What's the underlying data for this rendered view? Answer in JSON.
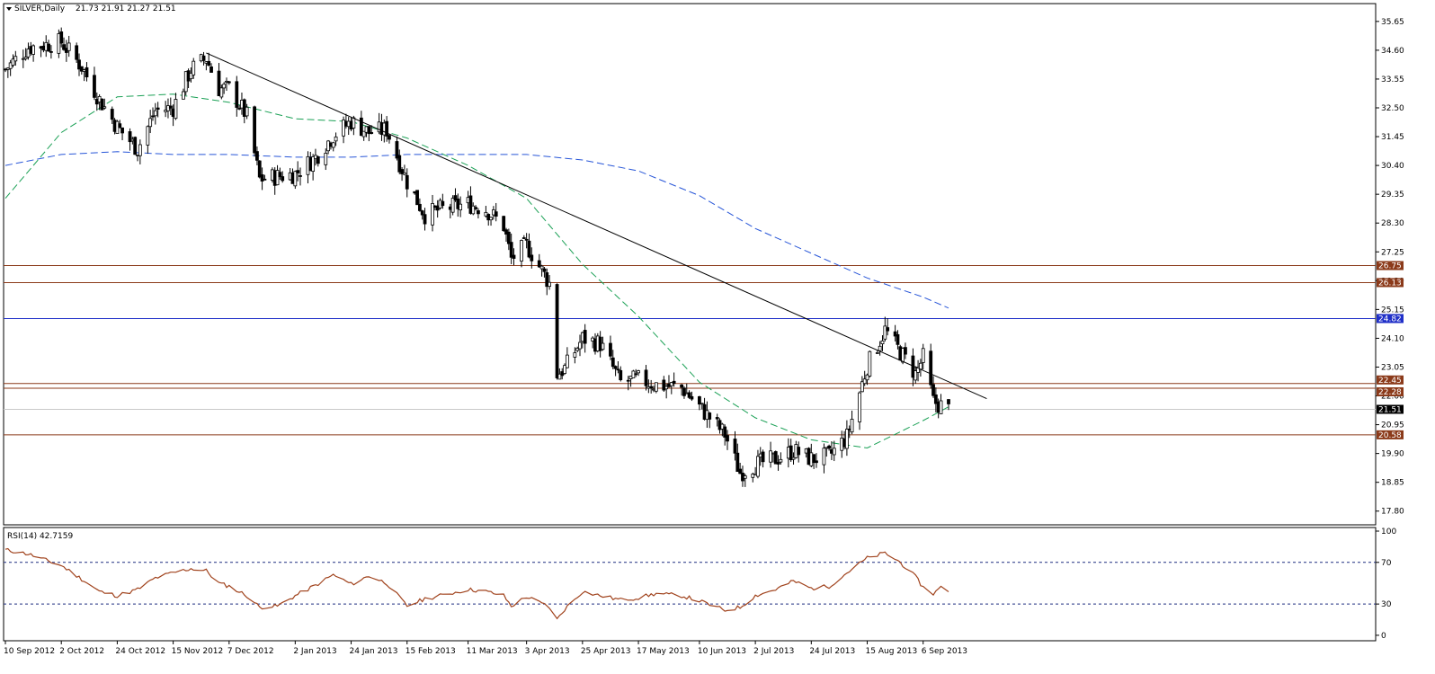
{
  "header": {
    "symbol_label": "SILVER,Daily",
    "ohlc_label": "21.73 21.91 21.27 21.51"
  },
  "chart_data": [
    {
      "type": "candlestick",
      "title": "SILVER,Daily",
      "ohlc_last": {
        "open": 21.73,
        "high": 21.91,
        "low": 21.27,
        "close": 21.51
      },
      "y_range": [
        17.3,
        36.3
      ],
      "y_ticks": [
        "35.65",
        "34.60",
        "33.55",
        "32.50",
        "31.45",
        "30.40",
        "29.35",
        "28.30",
        "27.25",
        "26.20",
        "25.15",
        "24.10",
        "23.05",
        "22.00",
        "20.95",
        "19.90",
        "18.85",
        "17.80"
      ],
      "x_ticks": [
        "10 Sep 2012",
        "2 Oct 2012",
        "24 Oct 2012",
        "15 Nov 2012",
        "7 Dec 2012",
        "2 Jan 2013",
        "24 Jan 2013",
        "15 Feb 2013",
        "11 Mar 2013",
        "3 Apr 2013",
        "25 Apr 2013",
        "17 May 2013",
        "10 Jun 2013",
        "2 Jul 2013",
        "24 Jul 2013",
        "15 Aug 2013",
        "6 Sep 2013"
      ],
      "key_points": [
        {
          "date": "10 Sep 2012",
          "close": 33.9
        },
        {
          "date": "19 Sep 2012",
          "close": 34.7
        },
        {
          "date": "2 Oct 2012",
          "close": 34.9
        },
        {
          "date": "10 Oct 2012",
          "close": 34.0
        },
        {
          "date": "17 Oct 2012",
          "close": 32.8
        },
        {
          "date": "24 Oct 2012",
          "close": 31.8
        },
        {
          "date": "1 Nov 2012",
          "close": 31.0
        },
        {
          "date": "8 Nov 2012",
          "close": 32.4
        },
        {
          "date": "15 Nov 2012",
          "close": 32.5
        },
        {
          "date": "22 Nov 2012",
          "close": 33.9
        },
        {
          "date": "28 Nov 2012",
          "close": 34.3
        },
        {
          "date": "3 Dec 2012",
          "close": 33.2
        },
        {
          "date": "7 Dec 2012",
          "close": 33.2
        },
        {
          "date": "14 Dec 2012",
          "close": 32.2
        },
        {
          "date": "19 Dec 2012",
          "close": 29.9
        },
        {
          "date": "26 Dec 2012",
          "close": 30.0
        },
        {
          "date": "2 Jan 2013",
          "close": 30.1
        },
        {
          "date": "10 Jan 2013",
          "close": 30.7
        },
        {
          "date": "17 Jan 2013",
          "close": 31.5
        },
        {
          "date": "24 Jan 2013",
          "close": 32.0
        },
        {
          "date": "31 Jan 2013",
          "close": 31.6
        },
        {
          "date": "7 Feb 2013",
          "close": 31.7
        },
        {
          "date": "15 Feb 2013",
          "close": 29.8
        },
        {
          "date": "22 Feb 2013",
          "close": 28.6
        },
        {
          "date": "28 Feb 2013",
          "close": 28.8
        },
        {
          "date": "11 Mar 2013",
          "close": 29.0
        },
        {
          "date": "18 Mar 2013",
          "close": 28.8
        },
        {
          "date": "25 Mar 2013",
          "close": 28.2
        },
        {
          "date": "28 Mar 2013",
          "close": 27.0
        },
        {
          "date": "3 Apr 2013",
          "close": 27.5
        },
        {
          "date": "12 Apr 2013",
          "close": 26.1
        },
        {
          "date": "15 Apr 2013",
          "close": 22.8
        },
        {
          "date": "18 Apr 2013",
          "close": 23.0
        },
        {
          "date": "25 Apr 2013",
          "close": 24.1
        },
        {
          "date": "2 May 2013",
          "close": 23.9
        },
        {
          "date": "10 May 2013",
          "close": 22.5
        },
        {
          "date": "17 May 2013",
          "close": 22.6
        },
        {
          "date": "24 May 2013",
          "close": 22.4
        },
        {
          "date": "3 Jun 2013",
          "close": 22.3
        },
        {
          "date": "10 Jun 2013",
          "close": 21.6
        },
        {
          "date": "20 Jun 2013",
          "close": 20.6
        },
        {
          "date": "26 Jun 2013",
          "close": 19.2
        },
        {
          "date": "2 Jul 2013",
          "close": 19.5
        },
        {
          "date": "10 Jul 2013",
          "close": 19.7
        },
        {
          "date": "17 Jul 2013",
          "close": 20.0
        },
        {
          "date": "24 Jul 2013",
          "close": 19.7
        },
        {
          "date": "31 Jul 2013",
          "close": 19.8
        },
        {
          "date": "7 Aug 2013",
          "close": 20.5
        },
        {
          "date": "15 Aug 2013",
          "close": 23.1
        },
        {
          "date": "22 Aug 2013",
          "close": 24.4
        },
        {
          "date": "28 Aug 2013",
          "close": 23.6
        },
        {
          "date": "3 Sep 2013",
          "close": 22.8
        },
        {
          "date": "6 Sep 2013",
          "close": 23.4
        },
        {
          "date": "10 Sep 2013",
          "close": 21.8
        },
        {
          "date": "16 Sep 2013",
          "close": 21.5
        }
      ],
      "overlays": {
        "ma_short": [
          {
            "date": "10 Sep 2012",
            "value": 29.2
          },
          {
            "date": "2 Oct 2012",
            "value": 31.6
          },
          {
            "date": "24 Oct 2012",
            "value": 32.9
          },
          {
            "date": "15 Nov 2012",
            "value": 33.0
          },
          {
            "date": "7 Dec 2012",
            "value": 32.7
          },
          {
            "date": "2 Jan 2013",
            "value": 32.1
          },
          {
            "date": "24 Jan 2013",
            "value": 32.0
          },
          {
            "date": "15 Feb 2013",
            "value": 31.4
          },
          {
            "date": "11 Mar 2013",
            "value": 30.4
          },
          {
            "date": "3 Apr 2013",
            "value": 29.2
          },
          {
            "date": "25 Apr 2013",
            "value": 26.8
          },
          {
            "date": "17 May 2013",
            "value": 24.9
          },
          {
            "date": "10 Jun 2013",
            "value": 22.5
          },
          {
            "date": "2 Jul 2013",
            "value": 21.2
          },
          {
            "date": "24 Jul 2013",
            "value": 20.4
          },
          {
            "date": "15 Aug 2013",
            "value": 20.1
          },
          {
            "date": "6 Sep 2013",
            "value": 21.1
          },
          {
            "date": "16 Sep 2013",
            "value": 21.6
          }
        ],
        "ma_long": [
          {
            "date": "10 Sep 2012",
            "value": 30.4
          },
          {
            "date": "2 Oct 2012",
            "value": 30.8
          },
          {
            "date": "24 Oct 2012",
            "value": 30.9
          },
          {
            "date": "15 Nov 2012",
            "value": 30.8
          },
          {
            "date": "7 Dec 2012",
            "value": 30.8
          },
          {
            "date": "2 Jan 2013",
            "value": 30.7
          },
          {
            "date": "24 Jan 2013",
            "value": 30.7
          },
          {
            "date": "15 Feb 2013",
            "value": 30.8
          },
          {
            "date": "11 Mar 2013",
            "value": 30.8
          },
          {
            "date": "3 Apr 2013",
            "value": 30.8
          },
          {
            "date": "25 Apr 2013",
            "value": 30.6
          },
          {
            "date": "17 May 2013",
            "value": 30.2
          },
          {
            "date": "10 Jun 2013",
            "value": 29.3
          },
          {
            "date": "2 Jul 2013",
            "value": 28.1
          },
          {
            "date": "24 Jul 2013",
            "value": 27.2
          },
          {
            "date": "15 Aug 2013",
            "value": 26.3
          },
          {
            "date": "6 Sep 2013",
            "value": 25.6
          },
          {
            "date": "16 Sep 2013",
            "value": 25.2
          }
        ],
        "trendline": {
          "from": {
            "date": "28 Nov 2012",
            "value": 34.5
          },
          "to": {
            "date": "1 Oct 2013",
            "value": 21.9
          }
        },
        "horizontal_levels": [
          {
            "label": "26.75",
            "value": 26.75,
            "color": "#8b3a1a"
          },
          {
            "label": "26.13",
            "value": 26.13,
            "color": "#8b3a1a"
          },
          {
            "label": "24.82",
            "value": 24.82,
            "color": "#1f2fc8"
          },
          {
            "label": "22.45",
            "value": 22.45,
            "color": "#8b3a1a"
          },
          {
            "label": "22.28",
            "value": 22.28,
            "color": "#8b3a1a"
          },
          {
            "label": "20.58",
            "value": 20.58,
            "color": "#8b3a1a"
          }
        ],
        "current_price_label": "21.51"
      },
      "colors": {
        "candle_up": "#ffffff",
        "candle_down": "#000000",
        "ma_short": "#1aa055",
        "ma_long": "#2856d8",
        "trendline": "#000000"
      }
    },
    {
      "type": "line",
      "title": "RSI(14) 42.7159",
      "y_range": [
        0,
        100
      ],
      "y_ticks": [
        "100",
        "70",
        "30",
        "0"
      ],
      "levels": [
        70,
        30
      ],
      "series": [
        {
          "name": "RSI(14)",
          "color": "#a0421c",
          "points": [
            {
              "date": "10 Sep 2012",
              "value": 82
            },
            {
              "date": "19 Sep 2012",
              "value": 78
            },
            {
              "date": "2 Oct 2012",
              "value": 67
            },
            {
              "date": "10 Oct 2012",
              "value": 54
            },
            {
              "date": "17 Oct 2012",
              "value": 42
            },
            {
              "date": "24 Oct 2012",
              "value": 38
            },
            {
              "date": "1 Nov 2012",
              "value": 44
            },
            {
              "date": "8 Nov 2012",
              "value": 55
            },
            {
              "date": "15 Nov 2012",
              "value": 60
            },
            {
              "date": "22 Nov 2012",
              "value": 64
            },
            {
              "date": "28 Nov 2012",
              "value": 62
            },
            {
              "date": "3 Dec 2012",
              "value": 50
            },
            {
              "date": "7 Dec 2012",
              "value": 47
            },
            {
              "date": "14 Dec 2012",
              "value": 38
            },
            {
              "date": "19 Dec 2012",
              "value": 27
            },
            {
              "date": "26 Dec 2012",
              "value": 28
            },
            {
              "date": "2 Jan 2013",
              "value": 38
            },
            {
              "date": "10 Jan 2013",
              "value": 48
            },
            {
              "date": "17 Jan 2013",
              "value": 58
            },
            {
              "date": "24 Jan 2013",
              "value": 49
            },
            {
              "date": "31 Jan 2013",
              "value": 57
            },
            {
              "date": "7 Feb 2013",
              "value": 50
            },
            {
              "date": "15 Feb 2013",
              "value": 28
            },
            {
              "date": "22 Feb 2013",
              "value": 35
            },
            {
              "date": "28 Feb 2013",
              "value": 38
            },
            {
              "date": "11 Mar 2013",
              "value": 44
            },
            {
              "date": "18 Mar 2013",
              "value": 42
            },
            {
              "date": "25 Mar 2013",
              "value": 38
            },
            {
              "date": "28 Mar 2013",
              "value": 28
            },
            {
              "date": "3 Apr 2013",
              "value": 37
            },
            {
              "date": "12 Apr 2013",
              "value": 27
            },
            {
              "date": "15 Apr 2013",
              "value": 15
            },
            {
              "date": "18 Apr 2013",
              "value": 25
            },
            {
              "date": "25 Apr 2013",
              "value": 42
            },
            {
              "date": "2 May 2013",
              "value": 38
            },
            {
              "date": "10 May 2013",
              "value": 34
            },
            {
              "date": "17 May 2013",
              "value": 36
            },
            {
              "date": "24 May 2013",
              "value": 40
            },
            {
              "date": "3 Jun 2013",
              "value": 38
            },
            {
              "date": "10 Jun 2013",
              "value": 33
            },
            {
              "date": "20 Jun 2013",
              "value": 24
            },
            {
              "date": "26 Jun 2013",
              "value": 27
            },
            {
              "date": "2 Jul 2013",
              "value": 38
            },
            {
              "date": "10 Jul 2013",
              "value": 44
            },
            {
              "date": "17 Jul 2013",
              "value": 52
            },
            {
              "date": "24 Jul 2013",
              "value": 45
            },
            {
              "date": "31 Jul 2013",
              "value": 47
            },
            {
              "date": "7 Aug 2013",
              "value": 60
            },
            {
              "date": "15 Aug 2013",
              "value": 74
            },
            {
              "date": "22 Aug 2013",
              "value": 79
            },
            {
              "date": "28 Aug 2013",
              "value": 70
            },
            {
              "date": "3 Sep 2013",
              "value": 56
            },
            {
              "date": "6 Sep 2013",
              "value": 46
            },
            {
              "date": "10 Sep 2013",
              "value": 40
            },
            {
              "date": "13 Sep 2013",
              "value": 46
            },
            {
              "date": "16 Sep 2013",
              "value": 43
            }
          ]
        }
      ]
    }
  ]
}
